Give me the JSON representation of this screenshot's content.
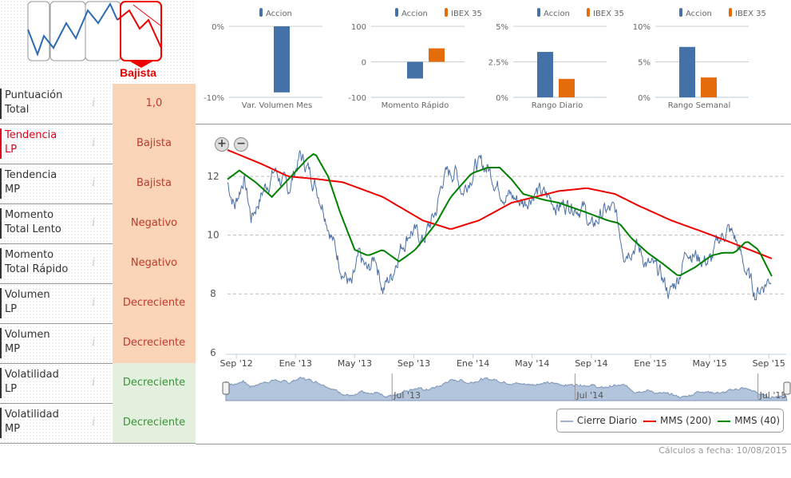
{
  "header": {
    "signal_label": "Bajista"
  },
  "rows": [
    {
      "label1": "Puntuación",
      "label2": "Total",
      "value": "1,0",
      "bg": "orange"
    },
    {
      "label1": "Tendencia",
      "label2": "LP",
      "value": "Bajista",
      "bg": "orange",
      "highlight": true
    },
    {
      "label1": "Tendencia",
      "label2": "MP",
      "value": "Bajista",
      "bg": "orange"
    },
    {
      "label1": "Momento",
      "label2": "Total Lento",
      "value": "Negativo",
      "bg": "orange"
    },
    {
      "label1": "Momento",
      "label2": "Total Rápido",
      "value": "Negativo",
      "bg": "orange"
    },
    {
      "label1": "Volumen",
      "label2": "LP",
      "value": "Decreciente",
      "bg": "orange"
    },
    {
      "label1": "Volumen",
      "label2": "MP",
      "value": "Decreciente",
      "bg": "orange"
    },
    {
      "label1": "Volatilidad",
      "label2": "LP",
      "value": "Decreciente",
      "bg": "green"
    },
    {
      "label1": "Volatilidad",
      "label2": "MP",
      "value": "Decreciente",
      "bg": "green"
    }
  ],
  "info_glyph": "i",
  "footer": {
    "calc_date": "Cálculos a fecha: 10/08/2015"
  },
  "colors": {
    "accion": "#4472a8",
    "ibex": "#e46c0a",
    "close": "#4a6fa5",
    "mms200": "#ee0000",
    "mms40": "#008000"
  },
  "chart_data": [
    {
      "type": "bar",
      "title": "Var. Volumen Mes",
      "legend": [
        "Accion"
      ],
      "ticks": [
        "0%",
        "-10%"
      ],
      "ylim": [
        -10,
        0
      ],
      "values": [
        -9.3
      ]
    },
    {
      "type": "bar",
      "title": "Momento Rápido",
      "legend": [
        "Accion",
        "IBEX 35"
      ],
      "ticks": [
        "100",
        "0",
        "-100"
      ],
      "ylim": [
        -100,
        100
      ],
      "values": [
        -47,
        38
      ]
    },
    {
      "type": "bar",
      "title": "Rango Diario",
      "legend": [
        "Accion",
        "IBEX 35"
      ],
      "ticks": [
        "5%",
        "2.5%",
        "0%"
      ],
      "ylim": [
        0,
        5
      ],
      "values": [
        3.2,
        1.3
      ]
    },
    {
      "type": "bar",
      "title": "Rango Semanal",
      "legend": [
        "Accion",
        "IBEX 35"
      ],
      "ticks": [
        "10%",
        "5%",
        "0%"
      ],
      "ylim": [
        0,
        10
      ],
      "values": [
        7.1,
        2.8
      ]
    },
    {
      "type": "line",
      "x_unit": "months since Aug 2012",
      "ylim": [
        6,
        13
      ],
      "yticks": [
        6,
        8,
        10,
        12
      ],
      "xticks": [
        "Sep '12",
        "Ene '13",
        "May '13",
        "Sep '13",
        "Ene '14",
        "May '14",
        "Sep '14",
        "Ene '15",
        "May '15",
        "Sep '15"
      ],
      "nav_ticks": [
        "Jul '13",
        "Jul '14",
        "Jul '15"
      ],
      "legend": [
        "Cierre Diario",
        "MMS (200)",
        "MMS (40)"
      ],
      "series": [
        {
          "name": "Cierre Diario",
          "points": [
            [
              0,
              11.8
            ],
            [
              0.5,
              11
            ],
            [
              1.1,
              12
            ],
            [
              1.6,
              10.6
            ],
            [
              2.4,
              11.5
            ],
            [
              3.2,
              12.2
            ],
            [
              4.1,
              11.5
            ],
            [
              4.9,
              12.7
            ],
            [
              5.4,
              12.3
            ],
            [
              5.9,
              11.8
            ],
            [
              6.5,
              11
            ],
            [
              7.3,
              9.5
            ],
            [
              7.8,
              8.8
            ],
            [
              8.4,
              8.2
            ],
            [
              8.9,
              9.2
            ],
            [
              9.5,
              8.7
            ],
            [
              10,
              9.3
            ],
            [
              10.5,
              8.2
            ],
            [
              11.1,
              8.6
            ],
            [
              11.6,
              9.5
            ],
            [
              12.4,
              10.2
            ],
            [
              13.2,
              9.8
            ],
            [
              14.1,
              10.8
            ],
            [
              14.6,
              12
            ],
            [
              15.4,
              12.2
            ],
            [
              15.9,
              11.5
            ],
            [
              16.8,
              12.4
            ],
            [
              17.6,
              12.3
            ],
            [
              18.4,
              11.6
            ],
            [
              19.2,
              11.3
            ],
            [
              20,
              11.1
            ],
            [
              20.8,
              11.5
            ],
            [
              21.6,
              11.3
            ],
            [
              22.4,
              11
            ],
            [
              23.2,
              11.1
            ],
            [
              24.1,
              10.9
            ],
            [
              24.6,
              10.2
            ],
            [
              25.4,
              10.8
            ],
            [
              26.2,
              10.8
            ],
            [
              26.8,
              9.5
            ],
            [
              27.6,
              9.7
            ],
            [
              28.4,
              9
            ],
            [
              29.2,
              8.7
            ],
            [
              29.9,
              8
            ],
            [
              30.5,
              8.6
            ],
            [
              31.1,
              9.6
            ],
            [
              31.9,
              9.2
            ],
            [
              32.7,
              9.1
            ],
            [
              33.2,
              9.8
            ],
            [
              33.8,
              10.2
            ],
            [
              34.3,
              9.9
            ],
            [
              34.9,
              9
            ],
            [
              35.7,
              8
            ],
            [
              36.2,
              8.3
            ],
            [
              36.8,
              8.6
            ]
          ]
        },
        {
          "name": "MMS (200)",
          "points": [
            [
              0,
              12.9
            ],
            [
              2.4,
              12.4
            ],
            [
              4.1,
              12
            ],
            [
              6.2,
              11.9
            ],
            [
              7.8,
              11.8
            ],
            [
              10.5,
              11.3
            ],
            [
              13.2,
              10.5
            ],
            [
              15.1,
              10.2
            ],
            [
              17,
              10.5
            ],
            [
              19.2,
              11.1
            ],
            [
              22.4,
              11.5
            ],
            [
              24.3,
              11.6
            ],
            [
              26.2,
              11.4
            ],
            [
              27.8,
              11
            ],
            [
              30,
              10.5
            ],
            [
              32.2,
              10.1
            ],
            [
              34.3,
              9.7
            ],
            [
              36.8,
              9.2
            ]
          ]
        },
        {
          "name": "MMS (40)",
          "points": [
            [
              0,
              11.9
            ],
            [
              0.8,
              12.2
            ],
            [
              1.9,
              11.8
            ],
            [
              3,
              11.3
            ],
            [
              4.3,
              12
            ],
            [
              5.4,
              12.6
            ],
            [
              5.9,
              12.8
            ],
            [
              6.8,
              12
            ],
            [
              7.6,
              10.8
            ],
            [
              8.6,
              9.5
            ],
            [
              9.5,
              9.3
            ],
            [
              10.5,
              9.5
            ],
            [
              11.6,
              9.1
            ],
            [
              12.7,
              9.5
            ],
            [
              14.1,
              10.4
            ],
            [
              15.1,
              11.3
            ],
            [
              16.5,
              12.1
            ],
            [
              17.6,
              12.3
            ],
            [
              18.4,
              12.3
            ],
            [
              19.2,
              11.9
            ],
            [
              20,
              11.4
            ],
            [
              21.4,
              11.2
            ],
            [
              22.4,
              11.1
            ],
            [
              24.1,
              10.8
            ],
            [
              25.7,
              10.5
            ],
            [
              26.5,
              10.4
            ],
            [
              27.3,
              9.9
            ],
            [
              28.4,
              9.4
            ],
            [
              29.5,
              9
            ],
            [
              30.5,
              8.6
            ],
            [
              31.6,
              8.9
            ],
            [
              32.7,
              9.3
            ],
            [
              33.5,
              9.4
            ],
            [
              34.3,
              9.4
            ],
            [
              35.1,
              9.8
            ],
            [
              35.9,
              9.5
            ],
            [
              36.8,
              8.6
            ]
          ]
        }
      ]
    }
  ]
}
